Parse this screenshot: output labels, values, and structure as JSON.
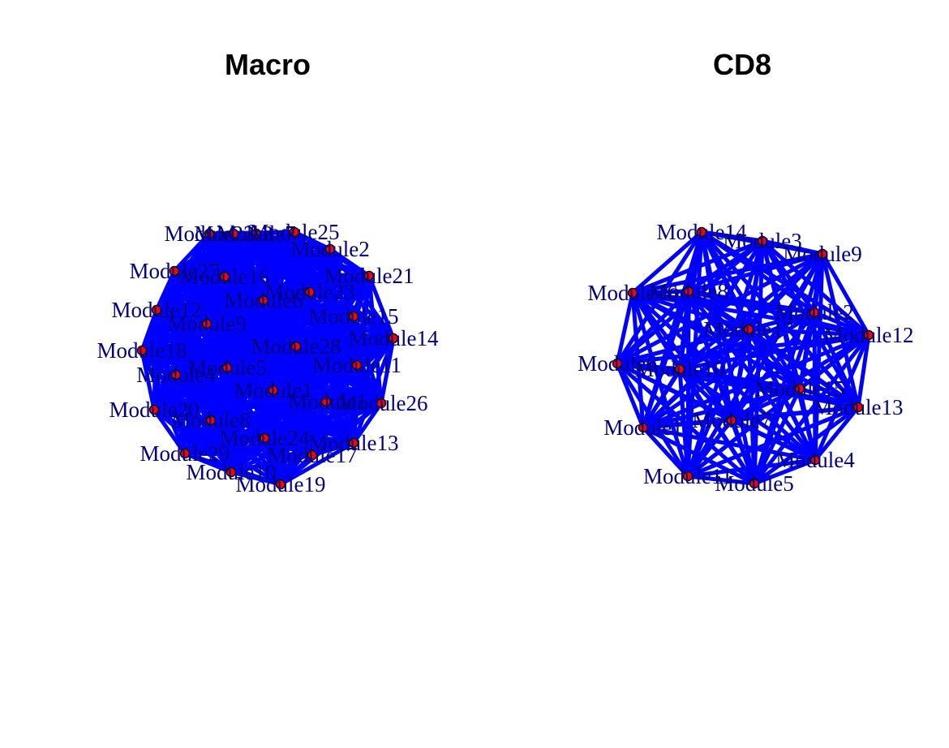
{
  "colors": {
    "edge": "#0000ff",
    "node_fill": "#ff0000",
    "node_stroke": "#000000",
    "label": "#000080",
    "background": "#ffffff"
  },
  "panels": [
    {
      "title": "Macro",
      "nodes": [
        "Module1",
        "Module2",
        "Module3",
        "Module4",
        "Module5",
        "Module6",
        "Module7",
        "Module8",
        "Module9",
        "Module10",
        "Module11",
        "Module12",
        "Module13",
        "Module14",
        "Module15",
        "Module16",
        "Module17",
        "Module18",
        "Module19",
        "Module20",
        "Module21",
        "Module22",
        "Module23",
        "Module24",
        "Module25",
        "Module26",
        "Module27",
        "Module28",
        "Module29"
      ],
      "edges": "all"
    },
    {
      "title": "CD8",
      "nodes": [
        "Module1",
        "Module2",
        "Module3",
        "Module4",
        "Module5",
        "Module6",
        "Module7",
        "Module8",
        "Module9",
        "Module10",
        "Module11",
        "Module12",
        "Module13",
        "Module14",
        "Module15",
        "Module16",
        "Module17"
      ],
      "edges": "all"
    }
  ]
}
